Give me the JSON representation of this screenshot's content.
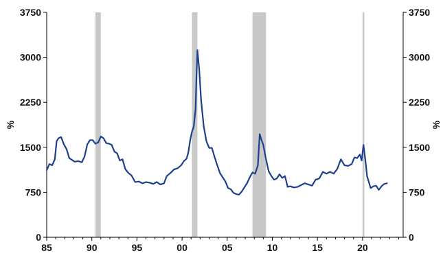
{
  "chart_data": {
    "type": "line",
    "title": "",
    "xlabel": "",
    "ylabel_left": "%",
    "ylabel_right": "%",
    "xlim": [
      1985,
      2024.5
    ],
    "ylim": [
      0,
      3750
    ],
    "x_ticks": [
      1985,
      1990,
      1995,
      2000,
      2005,
      2010,
      2015,
      2020
    ],
    "x_tick_labels": [
      "85",
      "90",
      "95",
      "00",
      "05",
      "10",
      "15",
      "20"
    ],
    "y_ticks": [
      0,
      750,
      1500,
      2250,
      3000,
      3750
    ],
    "y_tick_labels": [
      "0",
      "750",
      "1500",
      "2250",
      "3000",
      "3750"
    ],
    "grid": false,
    "legend": "none",
    "colors": {
      "line": "#1f3f8f",
      "shade": "#c8c8c8",
      "axis": "#000000"
    },
    "shaded_periods": [
      {
        "start": 1990.4,
        "end": 1991.0
      },
      {
        "start": 2001.1,
        "end": 2001.7
      },
      {
        "start": 2007.8,
        "end": 2009.3
      },
      {
        "start": 2020.0,
        "end": 2020.2
      }
    ],
    "series": [
      {
        "x": [
          1985.0,
          1985.3,
          1985.6,
          1985.9,
          1986.1,
          1986.3,
          1986.6,
          1986.9,
          1987.2,
          1987.5,
          1987.8,
          1988.1,
          1988.5,
          1988.9,
          1989.2,
          1989.5,
          1989.8,
          1990.1,
          1990.4,
          1990.7,
          1991.0,
          1991.3,
          1991.6,
          1991.9,
          1992.2,
          1992.5,
          1992.8,
          1993.1,
          1993.4,
          1993.7,
          1994.0,
          1994.4,
          1994.8,
          1995.2,
          1995.6,
          1996.0,
          1996.4,
          1996.8,
          1997.2,
          1997.6,
          1998.0,
          1998.3,
          1998.7,
          1999.1,
          1999.5,
          1999.9,
          2000.2,
          2000.5,
          2000.7,
          2000.9,
          2001.1,
          2001.3,
          2001.5,
          2001.6,
          2001.7,
          2001.9,
          2002.1,
          2002.4,
          2002.7,
          2003.0,
          2003.3,
          2003.6,
          2003.9,
          2004.2,
          2004.5,
          2004.8,
          2005.1,
          2005.4,
          2005.7,
          2006.0,
          2006.3,
          2006.6,
          2006.9,
          2007.2,
          2007.5,
          2007.8,
          2008.1,
          2008.4,
          2008.6,
          2008.8,
          2009.0,
          2009.3,
          2009.6,
          2009.9,
          2010.2,
          2010.5,
          2010.8,
          2011.1,
          2011.4,
          2011.7,
          2012.0,
          2012.4,
          2012.8,
          2013.2,
          2013.6,
          2014.0,
          2014.4,
          2014.8,
          2015.2,
          2015.6,
          2016.0,
          2016.4,
          2016.8,
          2017.2,
          2017.6,
          2018.0,
          2018.4,
          2018.8,
          2019.1,
          2019.4,
          2019.7,
          2019.9,
          2020.1,
          2020.3,
          2020.5,
          2020.7,
          2020.9,
          2021.2,
          2021.5,
          2021.8,
          2022.1,
          2022.4,
          2022.7
        ],
        "values": [
          1120,
          1220,
          1200,
          1300,
          1600,
          1650,
          1670,
          1550,
          1470,
          1320,
          1290,
          1260,
          1270,
          1250,
          1350,
          1550,
          1620,
          1620,
          1560,
          1580,
          1680,
          1650,
          1570,
          1560,
          1540,
          1430,
          1400,
          1280,
          1300,
          1140,
          1080,
          1030,
          920,
          930,
          900,
          920,
          910,
          890,
          920,
          880,
          900,
          1020,
          1070,
          1130,
          1150,
          1200,
          1270,
          1310,
          1420,
          1620,
          1760,
          1850,
          2150,
          2700,
          3120,
          2800,
          2300,
          1850,
          1600,
          1490,
          1490,
          1340,
          1200,
          1070,
          1000,
          930,
          820,
          800,
          740,
          720,
          710,
          760,
          830,
          900,
          1000,
          1080,
          1060,
          1200,
          1720,
          1620,
          1540,
          1300,
          1100,
          1020,
          960,
          980,
          1050,
          990,
          1020,
          840,
          850,
          830,
          840,
          870,
          900,
          880,
          860,
          960,
          980,
          1090,
          1060,
          1090,
          1060,
          1140,
          1300,
          1200,
          1190,
          1220,
          1330,
          1320,
          1380,
          1280,
          1540,
          1300,
          1020,
          920,
          820,
          850,
          860,
          790,
          850,
          890,
          900
        ]
      }
    ]
  }
}
